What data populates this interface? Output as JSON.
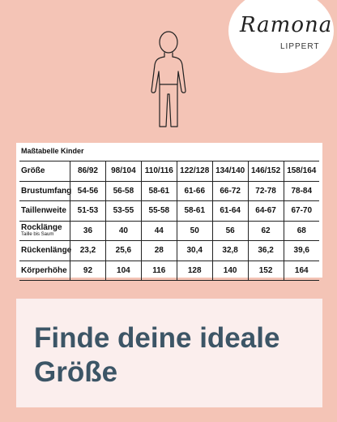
{
  "logo": {
    "script": "Ramona",
    "sub": "LIPPERT"
  },
  "table": {
    "title": "Maßtabelle Kinder",
    "rows": [
      {
        "label": "Größe",
        "values": [
          "86/92",
          "98/104",
          "110/116",
          "122/128",
          "134/140",
          "146/152",
          "158/164"
        ]
      },
      {
        "label": "Brustumfang",
        "values": [
          "54-56",
          "56-58",
          "58-61",
          "61-66",
          "66-72",
          "72-78",
          "78-84"
        ]
      },
      {
        "label": "Taillenweite",
        "values": [
          "51-53",
          "53-55",
          "55-58",
          "58-61",
          "61-64",
          "64-67",
          "67-70"
        ]
      },
      {
        "label": "Rocklänge",
        "sublabel": "Taille bis Saum",
        "values": [
          "36",
          "40",
          "44",
          "50",
          "56",
          "62",
          "68"
        ]
      },
      {
        "label": "Rückenlänge",
        "values": [
          "23,2",
          "25,6",
          "28",
          "30,4",
          "32,8",
          "36,2",
          "39,6"
        ]
      },
      {
        "label": "Körperhöhe",
        "values": [
          "92",
          "104",
          "116",
          "128",
          "140",
          "152",
          "164"
        ]
      }
    ]
  },
  "banner": {
    "line1": "Finde deine ideale",
    "line2": "Größe"
  },
  "icons": {
    "figure": "child-figure-icon"
  },
  "colors": {
    "background": "#f4c4b6",
    "banner_text": "#3c5566",
    "banner_bg": "#fbeeed"
  }
}
